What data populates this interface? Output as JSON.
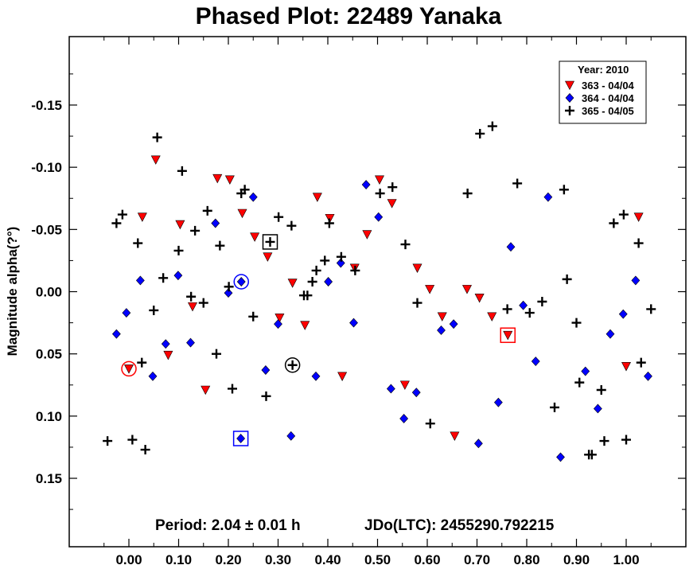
{
  "chart_data": {
    "type": "scatter",
    "title": "Phased Plot: 22489 Yanaka",
    "xlabel": "",
    "ylabel": "Magnitude alpha(?°)",
    "xlim": [
      -0.12,
      1.12
    ],
    "ylim": [
      0.205,
      -0.205
    ],
    "y_inverted": true,
    "x_ticks": [
      0.0,
      0.1,
      0.2,
      0.3,
      0.4,
      0.5,
      0.6,
      0.7,
      0.8,
      0.9,
      1.0
    ],
    "x_tick_labels": [
      "0.00",
      "0.10",
      "0.20",
      "0.30",
      "0.40",
      "0.50",
      "0.60",
      "0.70",
      "0.80",
      "0.90",
      "1.00"
    ],
    "y_ticks": [
      -0.15,
      -0.1,
      -0.05,
      0.0,
      0.05,
      0.1,
      0.15
    ],
    "y_tick_labels": [
      "-0.15",
      "-0.10",
      "-0.05",
      "0.00",
      "0.05",
      "0.10",
      "0.15"
    ],
    "grid": false,
    "legend": {
      "placement": "top-right",
      "header": "Year: 2010",
      "entries": [
        {
          "label": "363 - 04/04",
          "marker": "triangle-down",
          "color": "#ff0000"
        },
        {
          "label": "364 - 04/04",
          "marker": "diamond",
          "color": "#0000ff"
        },
        {
          "label": "365 - 04/05",
          "marker": "plus",
          "color": "#000000"
        }
      ]
    },
    "footer": {
      "period": "Period: 2.04 ± 0.01 h",
      "epoch": "JDo(LTC): 2455290.792215"
    },
    "series": [
      {
        "name": "363 - 04/04",
        "marker": "triangle-down",
        "color": "#ff0000",
        "x": [
          0.0,
          0.027,
          0.054,
          0.079,
          0.103,
          0.128,
          0.154,
          0.178,
          0.203,
          0.228,
          0.253,
          0.279,
          0.303,
          0.329,
          0.354,
          0.379,
          0.404,
          0.429,
          0.454,
          0.479,
          0.504,
          0.529,
          0.555,
          0.58,
          0.605,
          0.63,
          0.655,
          0.68,
          0.705,
          0.73,
          0.762,
          1.0,
          1.025
        ],
        "y": [
          0.062,
          -0.06,
          -0.106,
          0.051,
          -0.054,
          0.012,
          0.079,
          -0.091,
          -0.09,
          -0.063,
          -0.044,
          -0.028,
          0.021,
          -0.007,
          0.027,
          -0.076,
          -0.059,
          0.068,
          -0.019,
          -0.046,
          -0.09,
          -0.071,
          0.075,
          -0.019,
          -0.002,
          0.02,
          0.116,
          -0.002,
          0.005,
          0.02,
          0.035,
          0.06,
          -0.06
        ]
      },
      {
        "name": "364 - 04/04",
        "marker": "diamond",
        "color": "#0000ff",
        "x": [
          -0.025,
          -0.005,
          0.023,
          0.048,
          0.074,
          0.099,
          0.124,
          0.174,
          0.2,
          0.225,
          0.226,
          0.25,
          0.275,
          0.3,
          0.326,
          0.376,
          0.401,
          0.426,
          0.452,
          0.477,
          0.502,
          0.527,
          0.553,
          0.578,
          0.628,
          0.653,
          0.703,
          0.743,
          0.768,
          0.793,
          0.818,
          0.843,
          0.868,
          0.918,
          0.943,
          0.968,
          0.994,
          1.019,
          1.044
        ],
        "y": [
          0.034,
          0.017,
          -0.009,
          0.068,
          0.042,
          -0.013,
          0.041,
          -0.055,
          0.001,
          0.118,
          -0.008,
          -0.076,
          0.063,
          0.026,
          0.116,
          0.068,
          -0.008,
          -0.023,
          0.025,
          -0.086,
          -0.06,
          0.078,
          0.102,
          0.081,
          0.031,
          0.026,
          0.122,
          0.089,
          -0.036,
          0.011,
          0.056,
          -0.076,
          0.133,
          0.064,
          0.094,
          0.034,
          0.018,
          -0.009,
          0.068
        ]
      },
      {
        "name": "365 - 04/05",
        "marker": "plus",
        "color": "#000000",
        "x": [
          -0.043,
          -0.025,
          -0.013,
          0.007,
          0.018,
          0.026,
          0.033,
          0.05,
          0.057,
          0.069,
          0.1,
          0.107,
          0.125,
          0.133,
          0.15,
          0.158,
          0.176,
          0.183,
          0.201,
          0.208,
          0.226,
          0.233,
          0.25,
          0.276,
          0.284,
          0.301,
          0.327,
          0.329,
          0.352,
          0.359,
          0.369,
          0.377,
          0.394,
          0.403,
          0.427,
          0.455,
          0.505,
          0.53,
          0.556,
          0.58,
          0.606,
          0.681,
          0.706,
          0.731,
          0.761,
          0.781,
          0.806,
          0.831,
          0.856,
          0.875,
          0.881,
          0.9,
          0.906,
          0.925,
          0.931,
          0.95,
          0.956,
          0.975,
          0.995,
          1.0,
          1.025,
          1.03,
          1.05
        ],
        "y": [
          0.12,
          -0.055,
          -0.062,
          0.119,
          -0.039,
          0.057,
          0.127,
          0.015,
          -0.124,
          -0.011,
          -0.033,
          -0.097,
          0.004,
          -0.049,
          0.009,
          -0.065,
          0.05,
          -0.037,
          -0.004,
          0.078,
          -0.079,
          -0.082,
          0.02,
          0.084,
          -0.04,
          -0.06,
          -0.053,
          0.059,
          0.003,
          0.003,
          -0.008,
          -0.017,
          -0.025,
          -0.055,
          -0.028,
          -0.017,
          -0.079,
          -0.084,
          -0.038,
          0.009,
          0.106,
          -0.079,
          -0.127,
          -0.133,
          0.014,
          -0.087,
          0.017,
          0.008,
          0.093,
          -0.082,
          -0.01,
          0.025,
          0.073,
          0.131,
          0.131,
          0.079,
          0.12,
          -0.055,
          -0.062,
          0.119,
          -0.039,
          0.057,
          0.014
        ]
      }
    ],
    "highlights": [
      {
        "series": "363 - 04/04",
        "shape": "circle",
        "x": 0.0,
        "y": 0.062
      },
      {
        "series": "363 - 04/04",
        "shape": "square",
        "x": 0.762,
        "y": 0.035
      },
      {
        "series": "364 - 04/04",
        "shape": "circle",
        "x": 0.226,
        "y": -0.008
      },
      {
        "series": "364 - 04/04",
        "shape": "square",
        "x": 0.225,
        "y": 0.118
      },
      {
        "series": "365 - 04/05",
        "shape": "circle",
        "x": 0.329,
        "y": 0.059
      },
      {
        "series": "365 - 04/05",
        "shape": "square",
        "x": 0.284,
        "y": -0.04
      }
    ]
  }
}
